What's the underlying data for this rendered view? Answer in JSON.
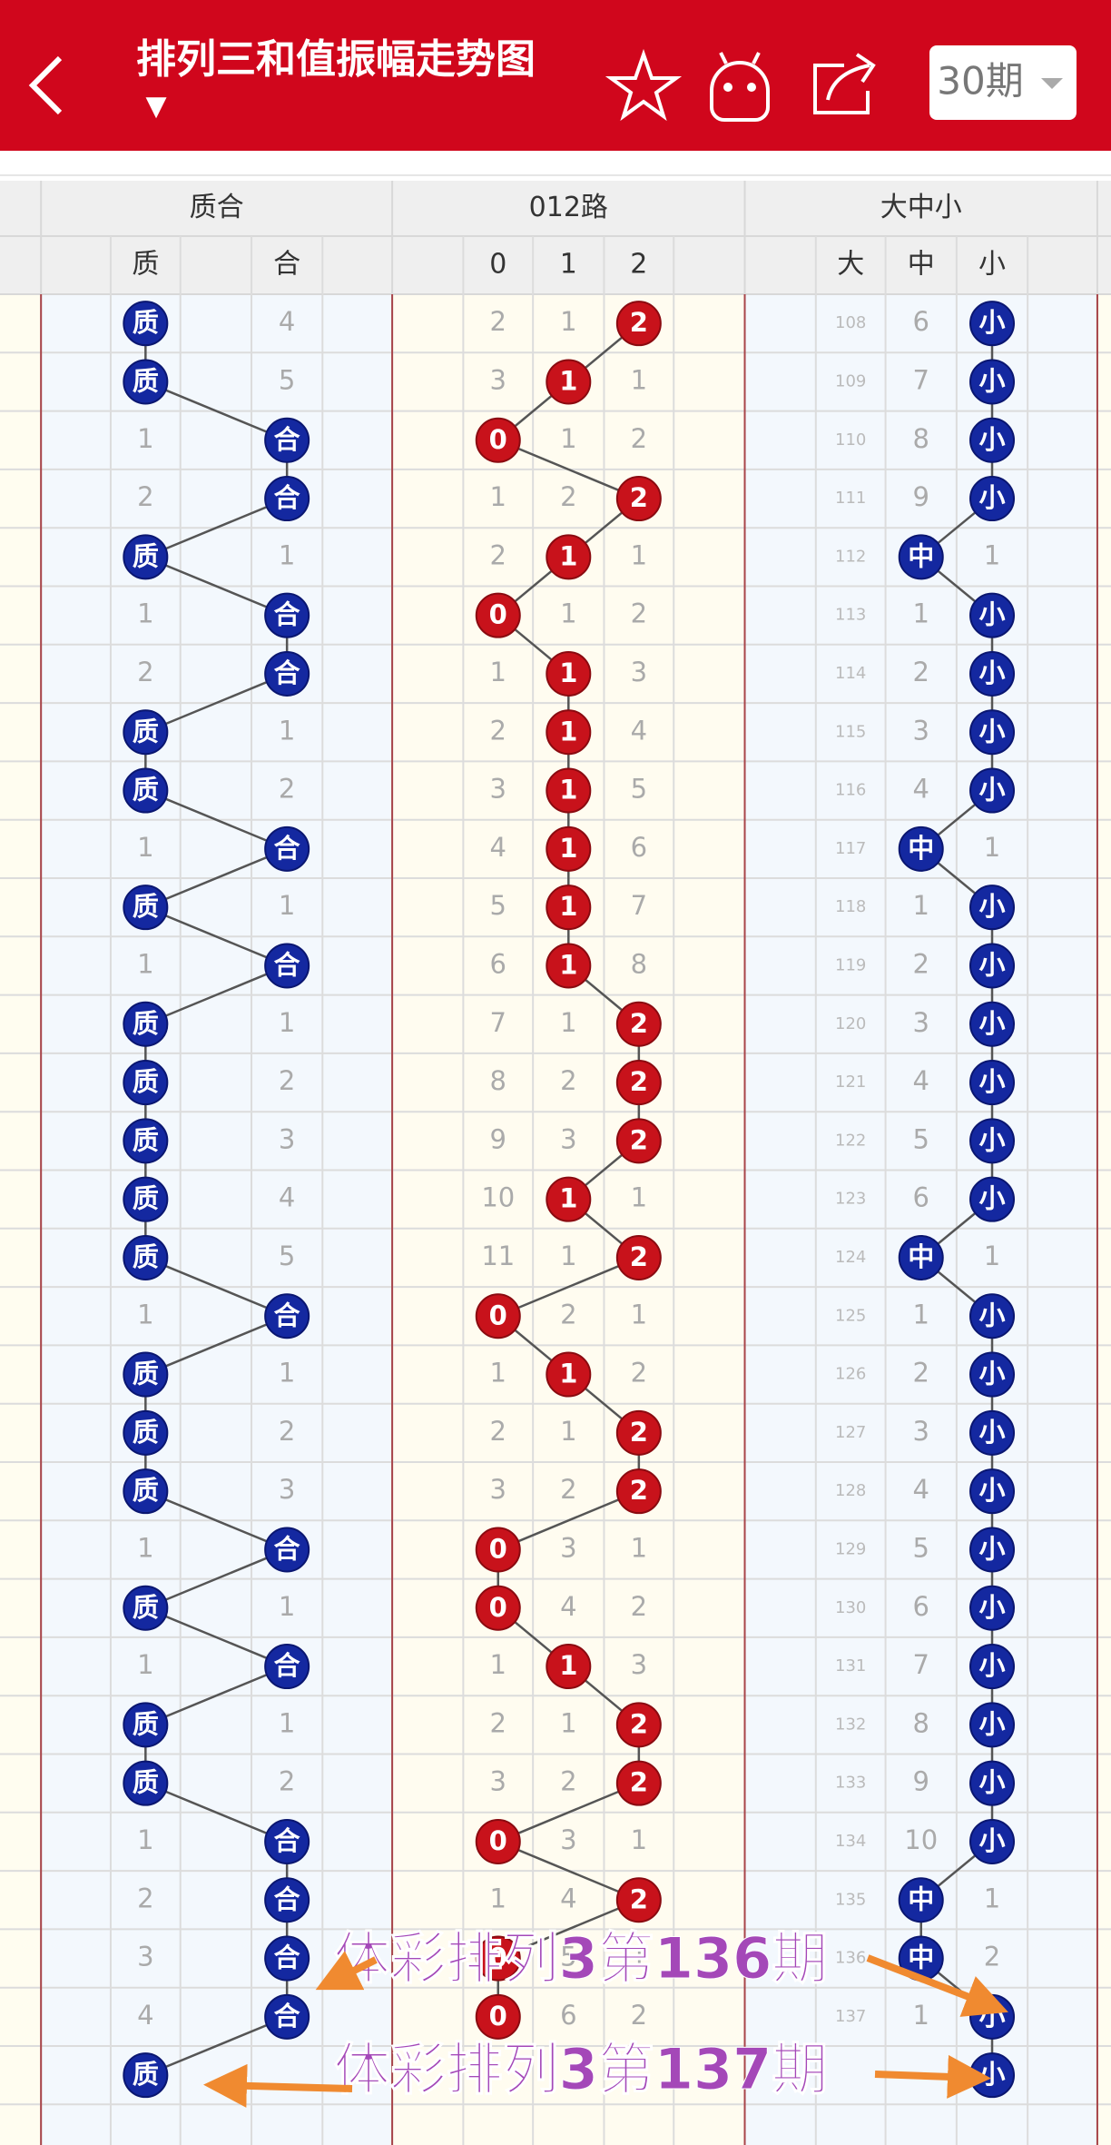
{
  "header": {
    "title": "排列三和值振幅走势图",
    "period": "30期"
  },
  "table": {
    "groups": [
      "质合",
      "012路",
      "大中小"
    ],
    "columns": [
      "质",
      "合",
      "0",
      "1",
      "2",
      "大",
      "中",
      "小"
    ],
    "rows": [
      {
        "zhihe": [
          "质",
          4
        ],
        "lu012": [
          2,
          1,
          "2"
        ],
        "daxiao": [
          108,
          6,
          "小"
        ]
      },
      {
        "zhihe": [
          "质",
          5
        ],
        "lu012": [
          3,
          "1",
          1
        ],
        "daxiao": [
          109,
          7,
          "小"
        ]
      },
      {
        "zhihe": [
          1,
          "合"
        ],
        "lu012": [
          "0",
          1,
          2
        ],
        "daxiao": [
          110,
          8,
          "小"
        ]
      },
      {
        "zhihe": [
          2,
          "合"
        ],
        "lu012": [
          1,
          2,
          "2"
        ],
        "daxiao": [
          111,
          9,
          "小"
        ]
      },
      {
        "zhihe": [
          "质",
          1
        ],
        "lu012": [
          2,
          "1",
          1
        ],
        "daxiao": [
          112,
          "中",
          1
        ]
      },
      {
        "zhihe": [
          1,
          "合"
        ],
        "lu012": [
          "0",
          1,
          2
        ],
        "daxiao": [
          113,
          1,
          "小"
        ]
      },
      {
        "zhihe": [
          2,
          "合"
        ],
        "lu012": [
          1,
          "1",
          3
        ],
        "daxiao": [
          114,
          2,
          "小"
        ]
      },
      {
        "zhihe": [
          "质",
          1
        ],
        "lu012": [
          2,
          "1",
          4
        ],
        "daxiao": [
          115,
          3,
          "小"
        ]
      },
      {
        "zhihe": [
          "质",
          2
        ],
        "lu012": [
          3,
          "1",
          5
        ],
        "daxiao": [
          116,
          4,
          "小"
        ]
      },
      {
        "zhihe": [
          1,
          "合"
        ],
        "lu012": [
          4,
          "1",
          6
        ],
        "daxiao": [
          117,
          "中",
          1
        ]
      },
      {
        "zhihe": [
          "质",
          1
        ],
        "lu012": [
          5,
          "1",
          7
        ],
        "daxiao": [
          118,
          1,
          "小"
        ]
      },
      {
        "zhihe": [
          1,
          "合"
        ],
        "lu012": [
          6,
          "1",
          8
        ],
        "daxiao": [
          119,
          2,
          "小"
        ]
      },
      {
        "zhihe": [
          "质",
          1
        ],
        "lu012": [
          7,
          1,
          "2"
        ],
        "daxiao": [
          120,
          3,
          "小"
        ]
      },
      {
        "zhihe": [
          "质",
          2
        ],
        "lu012": [
          8,
          2,
          "2"
        ],
        "daxiao": [
          121,
          4,
          "小"
        ]
      },
      {
        "zhihe": [
          "质",
          3
        ],
        "lu012": [
          9,
          3,
          "2"
        ],
        "daxiao": [
          122,
          5,
          "小"
        ]
      },
      {
        "zhihe": [
          "质",
          4
        ],
        "lu012": [
          10,
          "1",
          1
        ],
        "daxiao": [
          123,
          6,
          "小"
        ]
      },
      {
        "zhihe": [
          "质",
          5
        ],
        "lu012": [
          11,
          1,
          "2"
        ],
        "daxiao": [
          124,
          "中",
          1
        ]
      },
      {
        "zhihe": [
          1,
          "合"
        ],
        "lu012": [
          "0",
          2,
          1
        ],
        "daxiao": [
          125,
          1,
          "小"
        ]
      },
      {
        "zhihe": [
          "质",
          1
        ],
        "lu012": [
          1,
          "1",
          2
        ],
        "daxiao": [
          126,
          2,
          "小"
        ]
      },
      {
        "zhihe": [
          "质",
          2
        ],
        "lu012": [
          2,
          1,
          "2"
        ],
        "daxiao": [
          127,
          3,
          "小"
        ]
      },
      {
        "zhihe": [
          "质",
          3
        ],
        "lu012": [
          3,
          2,
          "2"
        ],
        "daxiao": [
          128,
          4,
          "小"
        ]
      },
      {
        "zhihe": [
          1,
          "合"
        ],
        "lu012": [
          "0",
          3,
          1
        ],
        "daxiao": [
          129,
          5,
          "小"
        ]
      },
      {
        "zhihe": [
          "质",
          1
        ],
        "lu012": [
          "0",
          4,
          2
        ],
        "daxiao": [
          130,
          6,
          "小"
        ]
      },
      {
        "zhihe": [
          1,
          "合"
        ],
        "lu012": [
          1,
          "1",
          3
        ],
        "daxiao": [
          131,
          7,
          "小"
        ]
      },
      {
        "zhihe": [
          "质",
          1
        ],
        "lu012": [
          2,
          1,
          "2"
        ],
        "daxiao": [
          132,
          8,
          "小"
        ]
      },
      {
        "zhihe": [
          "质",
          2
        ],
        "lu012": [
          3,
          2,
          "2"
        ],
        "daxiao": [
          133,
          9,
          "小"
        ]
      },
      {
        "zhihe": [
          1,
          "合"
        ],
        "lu012": [
          "0",
          3,
          1
        ],
        "daxiao": [
          134,
          10,
          "小"
        ]
      },
      {
        "zhihe": [
          2,
          "合"
        ],
        "lu012": [
          1,
          4,
          "2"
        ],
        "daxiao": [
          135,
          "中",
          1
        ]
      },
      {
        "zhihe": [
          3,
          "合"
        ],
        "lu012": [
          "0",
          5,
          1
        ],
        "daxiao": [
          136,
          "中",
          2
        ]
      },
      {
        "zhihe": [
          4,
          "合"
        ],
        "lu012": [
          "0",
          6,
          2
        ],
        "daxiao": [
          137,
          1,
          "小"
        ]
      },
      {
        "zhihe": [
          "质",
          null
        ],
        "lu012": [
          null,
          null,
          null
        ],
        "daxiao": [
          null,
          null,
          "小"
        ]
      }
    ]
  },
  "annotations": [
    "体彩排列3第136期",
    "体彩排列3第137期"
  ]
}
